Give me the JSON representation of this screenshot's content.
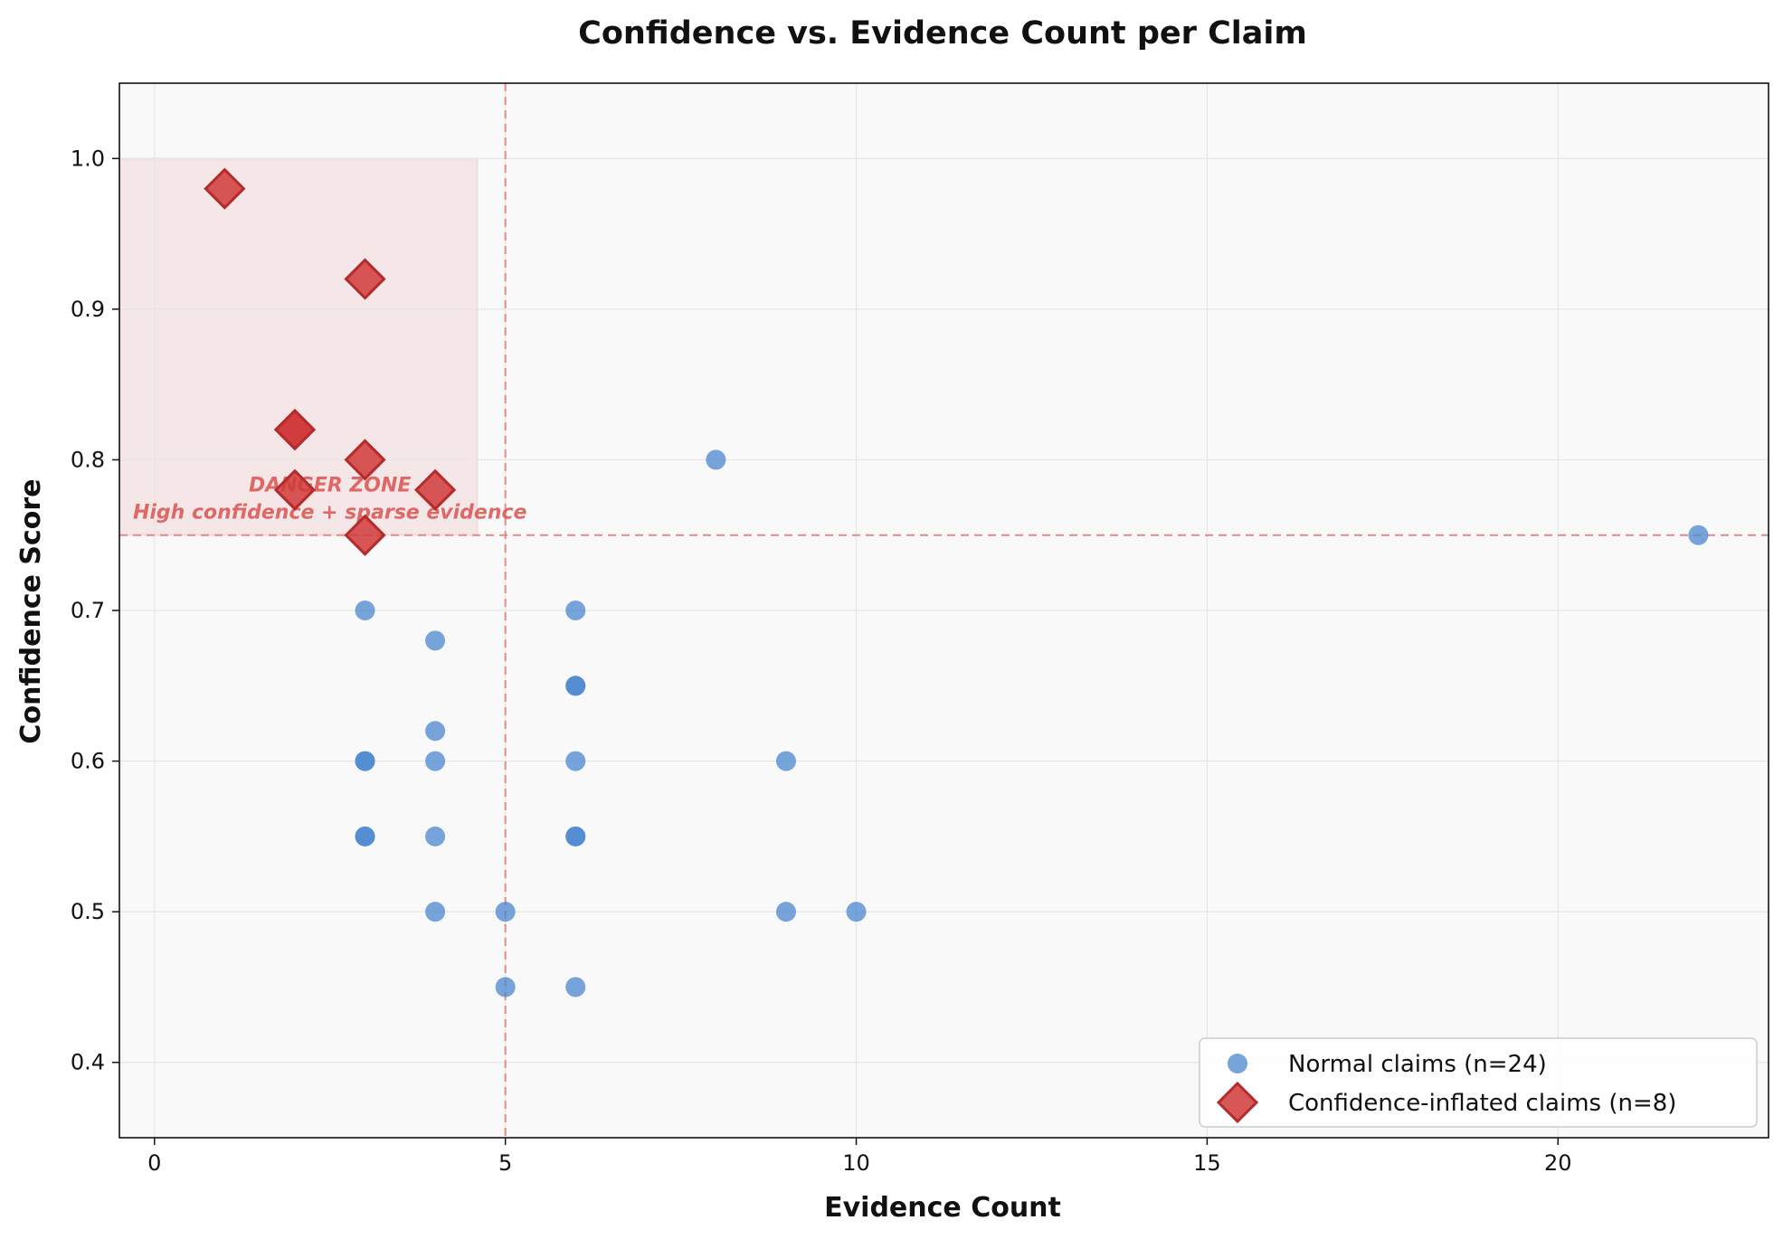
{
  "chart_data": {
    "type": "scatter",
    "title": "Confidence vs. Evidence Count per Claim",
    "xlabel": "Evidence Count",
    "ylabel": "Confidence Score",
    "xlim": [
      -0.5,
      23
    ],
    "ylim": [
      0.35,
      1.05
    ],
    "xticks": [
      0,
      5,
      10,
      15,
      20
    ],
    "yticks": [
      0.4,
      0.5,
      0.6,
      0.7,
      0.8,
      0.9,
      1.0
    ],
    "xtick_labels": [
      "0",
      "5",
      "10",
      "15",
      "20"
    ],
    "ytick_labels": [
      "0.4",
      "0.5",
      "0.6",
      "0.7",
      "0.8",
      "0.9",
      "1.0"
    ],
    "grid": true,
    "legend_position": "lower-right",
    "threshold_x": 5,
    "threshold_y": 0.75,
    "danger_zone": {
      "x_range": [
        -0.5,
        4.6
      ],
      "y_range": [
        0.75,
        1.0
      ],
      "label_line1": "DANGER ZONE",
      "label_line2": "High confidence + sparse evidence",
      "color": "#d9534f"
    },
    "series": [
      {
        "name": "Normal claims (n=24)",
        "marker": "circle",
        "color": "#4a86cf",
        "points": [
          [
            3,
            0.7
          ],
          [
            3,
            0.6
          ],
          [
            3,
            0.6
          ],
          [
            3,
            0.55
          ],
          [
            3,
            0.55
          ],
          [
            4,
            0.68
          ],
          [
            4,
            0.62
          ],
          [
            4,
            0.6
          ],
          [
            4,
            0.55
          ],
          [
            4,
            0.5
          ],
          [
            5,
            0.5
          ],
          [
            5,
            0.45
          ],
          [
            6,
            0.7
          ],
          [
            6,
            0.65
          ],
          [
            6,
            0.65
          ],
          [
            6,
            0.6
          ],
          [
            6,
            0.55
          ],
          [
            6,
            0.55
          ],
          [
            6,
            0.45
          ],
          [
            8,
            0.8
          ],
          [
            9,
            0.6
          ],
          [
            9,
            0.5
          ],
          [
            10,
            0.5
          ],
          [
            22,
            0.75
          ]
        ]
      },
      {
        "name": "Confidence-inflated claims (n=8)",
        "marker": "diamond",
        "color": "#d03a3a",
        "points": [
          [
            1,
            0.98
          ],
          [
            3,
            0.92
          ],
          [
            2,
            0.82
          ],
          [
            2,
            0.82
          ],
          [
            3,
            0.8
          ],
          [
            2,
            0.78
          ],
          [
            4,
            0.78
          ],
          [
            3,
            0.75
          ]
        ]
      }
    ]
  }
}
